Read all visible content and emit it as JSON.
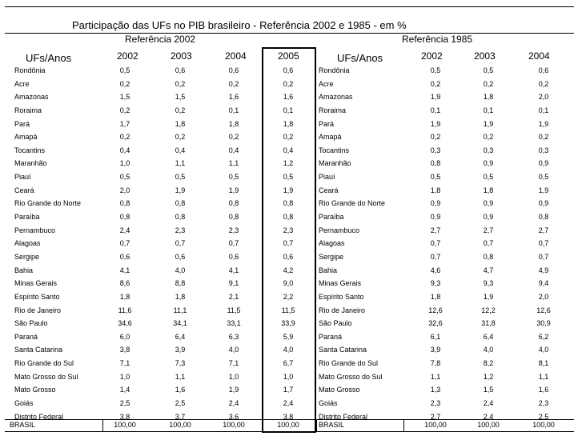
{
  "title": "Participação das UFs no PIB brasileiro - Referência 2002 e 1985 - em %",
  "left": {
    "reference": "Referência 2002",
    "uf_header": "UFs/Anos",
    "years": [
      "2002",
      "2003",
      "2004",
      "2005"
    ]
  },
  "right": {
    "reference": "Referência 1985",
    "uf_header": "UFs/Anos",
    "years": [
      "2002",
      "2003",
      "2004"
    ]
  },
  "rows": [
    {
      "uf": "Rondônia",
      "r2002": [
        "0,5",
        "0,6",
        "0,6",
        "0,6"
      ],
      "r1985": [
        "0,5",
        "0,5",
        "0,6"
      ]
    },
    {
      "uf": "Acre",
      "r2002": [
        "0,2",
        "0,2",
        "0,2",
        "0,2"
      ],
      "r1985": [
        "0,2",
        "0,2",
        "0,2"
      ]
    },
    {
      "uf": "Amazonas",
      "r2002": [
        "1,5",
        "1,5",
        "1,6",
        "1,6"
      ],
      "r1985": [
        "1,9",
        "1,8",
        "2,0"
      ]
    },
    {
      "uf": "Roraima",
      "r2002": [
        "0,2",
        "0,2",
        "0,1",
        "0,1"
      ],
      "r1985": [
        "0,1",
        "0,1",
        "0,1"
      ]
    },
    {
      "uf": "Pará",
      "r2002": [
        "1,7",
        "1,8",
        "1,8",
        "1,8"
      ],
      "r1985": [
        "1,9",
        "1,9",
        "1,9"
      ]
    },
    {
      "uf": "Amapá",
      "r2002": [
        "0,2",
        "0,2",
        "0,2",
        "0,2"
      ],
      "r1985": [
        "0,2",
        "0,2",
        "0,2"
      ]
    },
    {
      "uf": "Tocantins",
      "r2002": [
        "0,4",
        "0,4",
        "0,4",
        "0,4"
      ],
      "r1985": [
        "0,3",
        "0,3",
        "0,3"
      ]
    },
    {
      "uf": "Maranhão",
      "r2002": [
        "1,0",
        "1,1",
        "1,1",
        "1,2"
      ],
      "r1985": [
        "0,8",
        "0,9",
        "0,9"
      ]
    },
    {
      "uf": "Piauí",
      "r2002": [
        "0,5",
        "0,5",
        "0,5",
        "0,5"
      ],
      "r1985": [
        "0,5",
        "0,5",
        "0,5"
      ]
    },
    {
      "uf": "Ceará",
      "r2002": [
        "2,0",
        "1,9",
        "1,9",
        "1,9"
      ],
      "r1985": [
        "1,8",
        "1,8",
        "1,9"
      ]
    },
    {
      "uf": "Rio Grande do Norte",
      "r2002": [
        "0,8",
        "0,8",
        "0,8",
        "0,8"
      ],
      "r1985": [
        "0,9",
        "0,9",
        "0,9"
      ]
    },
    {
      "uf": "Paraíba",
      "r2002": [
        "0,8",
        "0,8",
        "0,8",
        "0,8"
      ],
      "r1985": [
        "0,9",
        "0,9",
        "0,8"
      ]
    },
    {
      "uf": "Pernambuco",
      "r2002": [
        "2,4",
        "2,3",
        "2,3",
        "2,3"
      ],
      "r1985": [
        "2,7",
        "2,7",
        "2,7"
      ]
    },
    {
      "uf": "Alagoas",
      "r2002": [
        "0,7",
        "0,7",
        "0,7",
        "0,7"
      ],
      "r1985": [
        "0,7",
        "0,7",
        "0,7"
      ]
    },
    {
      "uf": "Sergipe",
      "r2002": [
        "0,6",
        "0,6",
        "0,6",
        "0,6"
      ],
      "r1985": [
        "0,7",
        "0,8",
        "0,7"
      ]
    },
    {
      "uf": "Bahia",
      "r2002": [
        "4,1",
        "4,0",
        "4,1",
        "4,2"
      ],
      "r1985": [
        "4,6",
        "4,7",
        "4,9"
      ]
    },
    {
      "uf": "Minas Gerais",
      "r2002": [
        "8,6",
        "8,8",
        "9,1",
        "9,0"
      ],
      "r1985": [
        "9,3",
        "9,3",
        "9,4"
      ]
    },
    {
      "uf": "Espírito Santo",
      "r2002": [
        "1,8",
        "1,8",
        "2,1",
        "2,2"
      ],
      "r1985": [
        "1,8",
        "1,9",
        "2,0"
      ]
    },
    {
      "uf": "Rio de Janeiro",
      "r2002": [
        "11,6",
        "11,1",
        "11,5",
        "11,5"
      ],
      "r1985": [
        "12,6",
        "12,2",
        "12,6"
      ]
    },
    {
      "uf": "São Paulo",
      "r2002": [
        "34,6",
        "34,1",
        "33,1",
        "33,9"
      ],
      "r1985": [
        "32,6",
        "31,8",
        "30,9"
      ]
    },
    {
      "uf": "Paraná",
      "r2002": [
        "6,0",
        "6,4",
        "6,3",
        "5,9"
      ],
      "r1985": [
        "6,1",
        "6,4",
        "6,2"
      ]
    },
    {
      "uf": "Santa Catarina",
      "r2002": [
        "3,8",
        "3,9",
        "4,0",
        "4,0"
      ],
      "r1985": [
        "3,9",
        "4,0",
        "4,0"
      ]
    },
    {
      "uf": "Rio Grande do Sul",
      "r2002": [
        "7,1",
        "7,3",
        "7,1",
        "6,7"
      ],
      "r1985": [
        "7,8",
        "8,2",
        "8,1"
      ]
    },
    {
      "uf": "Mato Grosso do Sul",
      "r2002": [
        "1,0",
        "1,1",
        "1,0",
        "1,0"
      ],
      "r1985": [
        "1,1",
        "1,2",
        "1,1"
      ]
    },
    {
      "uf": "Mato Grosso",
      "r2002": [
        "1,4",
        "1,6",
        "1,9",
        "1,7"
      ],
      "r1985": [
        "1,3",
        "1,5",
        "1,6"
      ]
    },
    {
      "uf": "Goiás",
      "r2002": [
        "2,5",
        "2,5",
        "2,4",
        "2,4"
      ],
      "r1985": [
        "2,3",
        "2,4",
        "2,3"
      ]
    },
    {
      "uf": "Distrito Federal",
      "r2002": [
        "3,8",
        "3,7",
        "3,6",
        "3,8"
      ],
      "r1985": [
        "2,7",
        "2,4",
        "2,5"
      ]
    }
  ],
  "total": {
    "uf": "BRASIL",
    "r2002": [
      "100,00",
      "100,00",
      "100,00",
      "100,00"
    ],
    "r1985": [
      "100,00",
      "100,00",
      "100,00"
    ]
  }
}
